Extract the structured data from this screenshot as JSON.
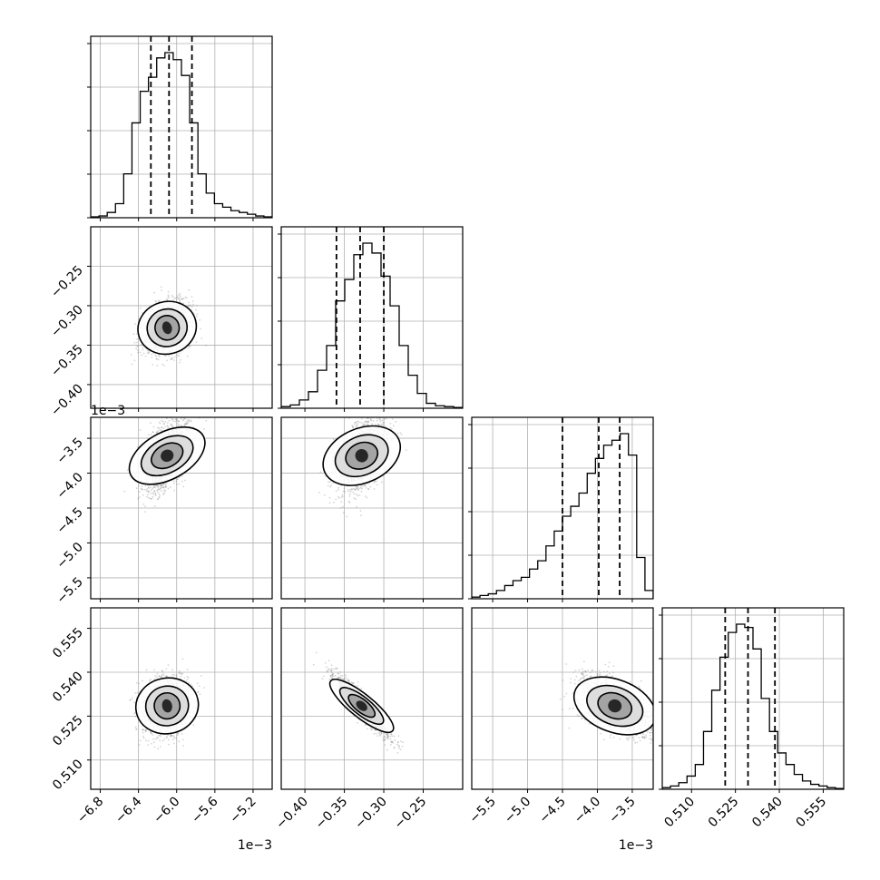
{
  "chart_data": {
    "type": "corner",
    "n_params": 4,
    "params": [
      {
        "index": 0,
        "range": [
          -6.9,
          -5.0
        ],
        "ticks": [
          -6.8,
          -6.4,
          -6.0,
          -5.6,
          -5.2
        ],
        "tick_labels": [
          "−6.8",
          "−6.4",
          "−6.0",
          "−5.6",
          "−5.2"
        ],
        "offset_text": "1e−3",
        "quantiles": [
          -6.27,
          -6.08,
          -5.84
        ],
        "center": -6.1,
        "hist": [
          0.5,
          1,
          3,
          8,
          25,
          54,
          72,
          80,
          91,
          94,
          90,
          81,
          54,
          25,
          14,
          8,
          6,
          4,
          3,
          2,
          1,
          0.5
        ]
      },
      {
        "index": 1,
        "range": [
          -0.43,
          -0.2
        ],
        "ticks": [
          -0.4,
          -0.35,
          -0.3,
          -0.25
        ],
        "tick_labels": [
          "−0.40",
          "−0.35",
          "−0.30",
          "−0.25"
        ],
        "offset_text": "",
        "quantiles": [
          -0.36,
          -0.33,
          -0.3
        ],
        "center": -0.328,
        "hist": [
          1,
          2,
          5,
          10,
          23,
          38,
          65,
          78,
          93,
          100,
          94,
          80,
          62,
          38,
          20,
          9,
          3,
          1.5,
          1,
          0.5
        ]
      },
      {
        "index": 2,
        "range": [
          -5.8,
          -3.2
        ],
        "ticks": [
          -5.5,
          -5.0,
          -4.5,
          -4.0,
          -3.5
        ],
        "tick_labels": [
          "−5.5",
          "−5.0",
          "−4.5",
          "−4.0",
          "−3.5"
        ],
        "offset_text": "1e−3",
        "quantiles": [
          -4.5,
          -3.98,
          -3.68
        ],
        "center": -3.75,
        "hist": [
          1,
          2,
          3,
          5,
          8,
          11,
          13,
          18,
          23,
          32,
          41,
          50,
          56,
          64,
          76,
          85,
          93,
          96,
          100,
          87,
          25,
          5
        ]
      },
      {
        "index": 3,
        "range": [
          0.5,
          0.562
        ],
        "ticks": [
          0.51,
          0.525,
          0.54,
          0.555
        ],
        "tick_labels": [
          "0.510",
          "0.525",
          "0.540",
          "0.555"
        ],
        "offset_text": "",
        "quantiles": [
          0.5215,
          0.5293,
          0.5385
        ],
        "center": 0.5285,
        "hist": [
          1,
          2,
          4,
          8,
          15,
          35,
          60,
          80,
          95,
          100,
          98,
          85,
          55,
          35,
          22,
          15,
          9,
          5,
          3,
          2,
          1,
          0.5
        ]
      }
    ],
    "correlations": [
      [
        1,
        0.3,
        0.45,
        0.2
      ],
      [
        0.3,
        1,
        0.4,
        -0.92
      ],
      [
        0.45,
        0.4,
        1,
        -0.55
      ],
      [
        0.2,
        -0.92,
        -0.55,
        1
      ]
    ],
    "spreads": [
      0.22,
      0.03,
      0.45,
      0.009
    ],
    "contour_levels": 3,
    "grid": true,
    "titles": "",
    "xlabels": "",
    "ylabels": ""
  }
}
